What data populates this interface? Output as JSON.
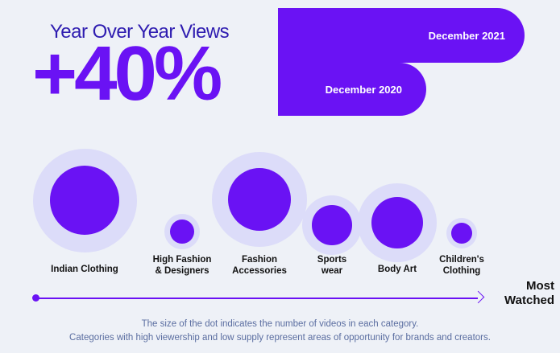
{
  "header": {
    "title": "Year Over Year Views",
    "change": "+40%"
  },
  "comparison": {
    "bars": [
      {
        "label": "December 2021",
        "relative_views": 1.4
      },
      {
        "label": "December 2020",
        "relative_views": 1.0
      }
    ]
  },
  "chart_data": {
    "type": "bubble",
    "title": "Year Over Year Views",
    "size_meaning": "number of videos in each category",
    "categories": [
      {
        "label": "Indian Clothing",
        "videos_relative": 1.0
      },
      {
        "label": "High Fashion\n& Designers",
        "videos_relative": 0.12
      },
      {
        "label": "Fashion\nAccessories",
        "videos_relative": 0.84
      },
      {
        "label": "Sports\nwear",
        "videos_relative": 0.33
      },
      {
        "label": "Body Art",
        "videos_relative": 0.57
      },
      {
        "label": "Children's\nClothing",
        "videos_relative": 0.09
      }
    ],
    "axis": {
      "label": "Most\nWatched",
      "direction": "left-to-right"
    }
  },
  "footer": {
    "line1": "The size of the dot indicates the number of videos in each category.",
    "line2": "Categories with high viewership and low supply represent areas of opportunity for brands and creators."
  },
  "colors": {
    "accent": "#6a12f4",
    "halo": "#dcdcf9",
    "title": "#2e1cb0",
    "background": "#eef1f7",
    "caption": "#5a6da0"
  }
}
